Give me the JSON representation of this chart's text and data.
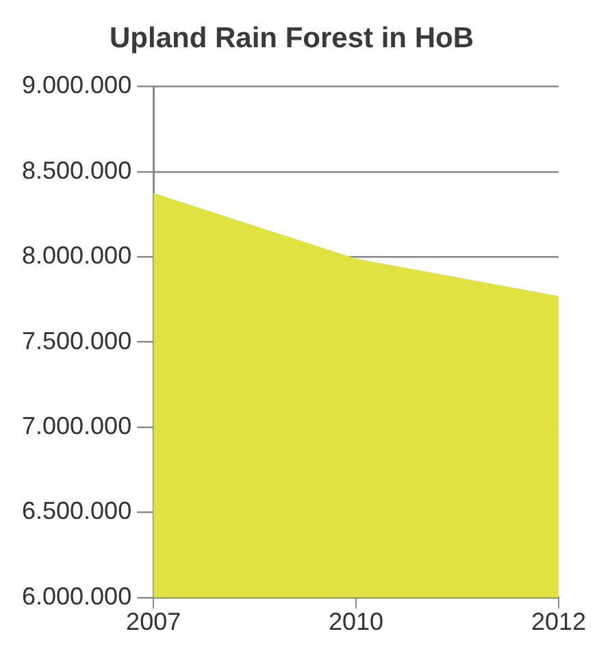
{
  "chart_data": {
    "type": "area",
    "title": "Upland Rain Forest in HoB",
    "categories": [
      "2007",
      "2010",
      "2012"
    ],
    "values": [
      8375000,
      7990000,
      7770000
    ],
    "color": "#dfe240",
    "ylim": [
      6000000,
      9000000
    ],
    "yticks": [
      {
        "value": 6000000,
        "label": "6.000.000"
      },
      {
        "value": 6500000,
        "label": "6.500.000"
      },
      {
        "value": 7000000,
        "label": "7.000.000"
      },
      {
        "value": 7500000,
        "label": "7.500.000"
      },
      {
        "value": 8000000,
        "label": "8.000.000"
      },
      {
        "value": 8500000,
        "label": "8.500.000"
      },
      {
        "value": 9000000,
        "label": "9.000.000"
      }
    ],
    "grid": "y"
  }
}
